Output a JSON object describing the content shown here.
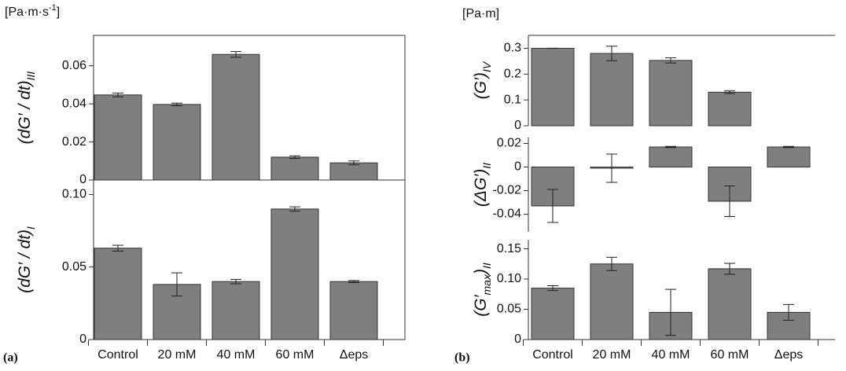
{
  "chart_data": [
    {
      "type": "bar",
      "column": "a",
      "panel_label": "(a)",
      "units": [
        {
          "text": "[Pa·m·s"
        },
        {
          "text": "-1",
          "sup": true
        },
        {
          "text": "]"
        }
      ],
      "ylabel": [
        {
          "text": "(dG′ / dt)"
        },
        {
          "text": "III",
          "sub": true
        }
      ],
      "values": [
        0.0447,
        0.0397,
        0.066,
        0.012,
        0.009
      ],
      "errors": [
        0.001,
        0.0007,
        0.0015,
        0.0007,
        0.001
      ],
      "ylim": [
        0,
        0.076
      ],
      "yticks": [
        0,
        0.02,
        0.04,
        0.06
      ],
      "color": "#7f7f7f"
    },
    {
      "type": "bar",
      "column": "a",
      "ylabel": [
        {
          "text": "(dG′ / dt)"
        },
        {
          "text": "I",
          "sub": true
        }
      ],
      "categories": [
        "Control",
        "20 mM",
        "40 mM",
        "60 mM",
        "Δeps"
      ],
      "values": [
        0.063,
        0.038,
        0.04,
        0.09,
        0.04
      ],
      "errors": [
        0.002,
        0.008,
        0.0015,
        0.0015,
        0.0007
      ],
      "ylim": [
        0,
        0.11
      ],
      "yticks": [
        0,
        0.05,
        {
          "value": 0.1,
          "label": "0.10"
        }
      ],
      "color": "#7f7f7f"
    },
    {
      "type": "bar",
      "column": "b",
      "panel_label": "(b)",
      "units": [
        {
          "text": "[Pa·m]"
        }
      ],
      "ylabel": [
        {
          "text": "(G′)"
        },
        {
          "text": "IV",
          "sub": true
        }
      ],
      "values": [
        0.3,
        0.28,
        0.253,
        0.13,
        null
      ],
      "errors": [
        0,
        0.028,
        0.01,
        0.005,
        null
      ],
      "ylim": [
        0,
        0.35
      ],
      "yticks": [
        0,
        0.1,
        0.2,
        0.3
      ],
      "color": "#7f7f7f"
    },
    {
      "type": "bar",
      "column": "b",
      "ylabel": [
        {
          "text": "(ΔG′)"
        },
        {
          "text": "II",
          "sub": true
        }
      ],
      "values": [
        -0.033,
        -0.001,
        0.017,
        -0.029,
        0.017
      ],
      "errors": [
        0.014,
        0.012,
        0.0005,
        0.013,
        0.0005
      ],
      "ylim": [
        -0.055,
        0.025
      ],
      "yticks": [
        -0.04,
        -0.02,
        0,
        0.02
      ],
      "color": "#7f7f7f"
    },
    {
      "type": "bar",
      "column": "b",
      "ylabel": [
        {
          "text": "(G′"
        },
        {
          "text": "max",
          "sub": true
        },
        {
          "text": ")"
        },
        {
          "text": "II",
          "sub": true
        }
      ],
      "categories": [
        "Control",
        "20 mM",
        "40 mM",
        "60 mM",
        "Δeps"
      ],
      "values": [
        0.085,
        0.125,
        0.045,
        0.117,
        0.045
      ],
      "errors": [
        0.004,
        0.011,
        0.038,
        0.009,
        0.013
      ],
      "ylim": [
        0,
        0.165
      ],
      "yticks": [
        0,
        0.05,
        {
          "value": 0.1,
          "label": "0.10"
        },
        0.15
      ],
      "color": "#7f7f7f"
    }
  ]
}
